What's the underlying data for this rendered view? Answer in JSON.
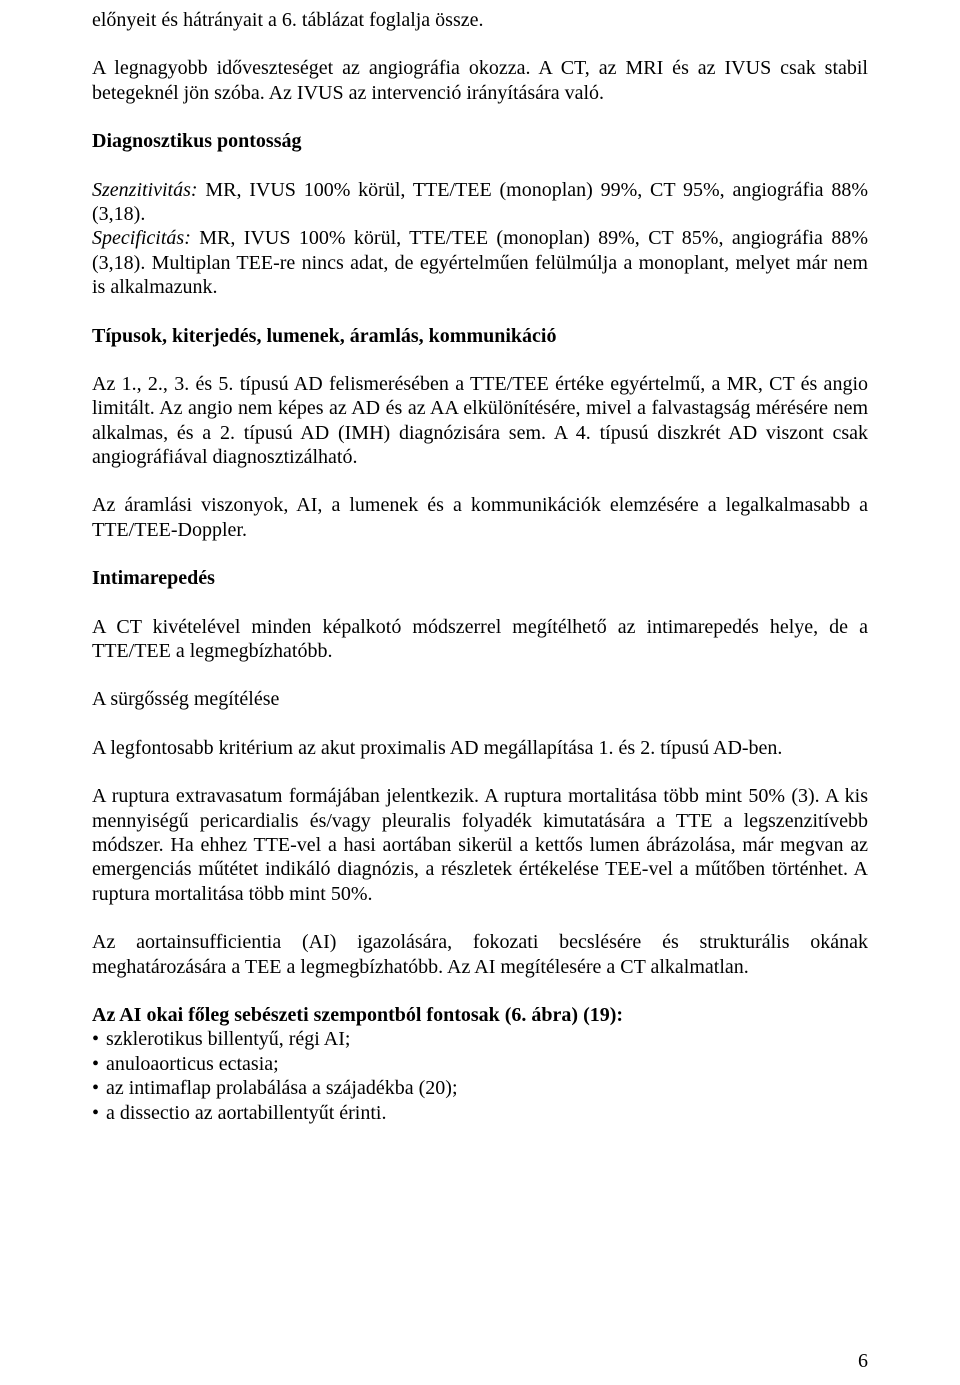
{
  "p1": "előnyeit és hátrányait a 6. táblázat foglalja össze.",
  "p2": "A legnagyobb időveszteséget az angiográfia okozza. A CT, az MRI és az IVUS csak stabil betegeknél jön szóba. Az IVUS az intervenció irányítására való.",
  "h1": "Diagnosztikus pontosság",
  "p3a_label": "Szenzitivitás:",
  "p3a_text": " MR, IVUS 100% körül, TTE/TEE (monoplan) 99%, CT 95%, angiográfia 88% (3,18).",
  "p3b_label": "Specificitás:",
  "p3b_text": " MR, IVUS 100% körül, TTE/TEE (monoplan) 89%, CT 85%, angiográfia 88% (3,18). Multiplan TEE-re nincs adat, de egyértelműen felülmúlja a monoplant, melyet már nem is alkalmazunk.",
  "h2": "Típusok, kiterjedés, lumenek, áramlás, kommunikáció",
  "p4": "Az 1., 2., 3. és 5. típusú AD felismerésében a TTE/TEE értéke egyértelmű, a MR, CT és angio limitált. Az angio nem képes az AD és az AA elkülönítésére, mivel a falvastagság mérésére nem alkalmas, és a 2. típusú AD (IMH) diagnózisára sem. A 4. típusú diszkrét AD viszont csak angiográfiával diagnosztizálható.",
  "p5": "Az áramlási viszonyok, AI, a lumenek és a kommunikációk elemzésére a legalkalmasabb a TTE/TEE-Doppler.",
  "h3": "Intimarepedés",
  "p6": "A CT kivételével minden képalkotó módszerrel megítélhető az intimarepedés helye, de a TTE/TEE a legmegbízhatóbb.",
  "p7": "A sürgősség megítélése",
  "p8": "A legfontosabb kritérium az akut proximalis AD megállapítása 1. és 2. típusú AD-ben.",
  "p9": "A ruptura extravasatum formájában jelentkezik. A ruptura mortalitása több mint 50% (3). A kis mennyiségű pericardialis és/vagy pleuralis folyadék kimutatására a TTE a legszenzitívebb módszer. Ha ehhez TTE-vel a hasi aortában sikerül a kettős lumen ábrázolása, már megvan az emergenciás műtétet indikáló diagnózis, a részletek értékelése TEE-vel a műtőben történhet. A ruptura mortalitása több mint 50%.",
  "p10": "Az aortainsufficientia (AI) igazolására, fokozati becslésére és strukturális okának meghatározására a TEE a legmegbízhatóbb. Az AI megítélesére a CT alkalmatlan.",
  "h4": "Az AI okai főleg sebészeti szempontból fontosak (6. ábra) (19):",
  "bullets": [
    "szklerotikus billentyű, régi AI;",
    "anuloaorticus ectasia;",
    "az intimaflap prolabálása a szájadékba (20);",
    "a dissectio az aortabillentyűt érinti."
  ],
  "bullet_mark": "•",
  "page_number": "6"
}
